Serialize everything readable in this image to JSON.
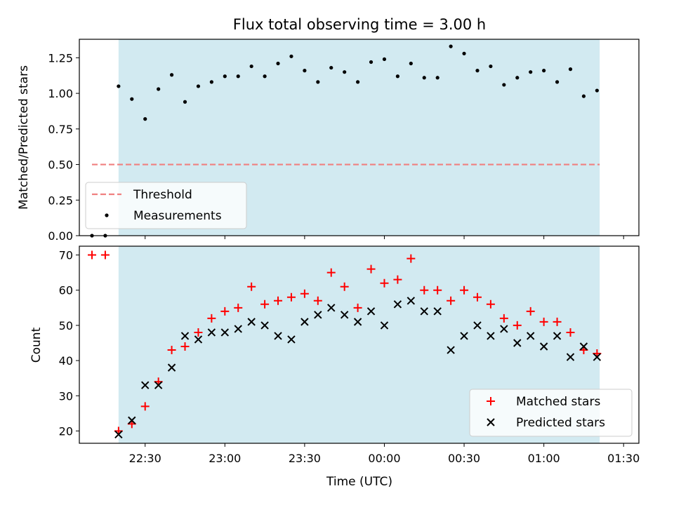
{
  "figure": {
    "title": "Flux total observing time = 3.00 h",
    "shaded_region_color": "#add8e6"
  },
  "chart_data": [
    {
      "type": "scatter",
      "panel": "top",
      "ylabel": "Matched/Predicted stars",
      "ylim": [
        0,
        1.38
      ],
      "yticks": [
        0.0,
        0.25,
        0.5,
        0.75,
        1.0,
        1.25
      ],
      "ytick_labels": [
        "0.00",
        "0.25",
        "0.50",
        "0.75",
        "1.00",
        "1.25"
      ],
      "xlim": [
        "22:10",
        "01:31"
      ],
      "shaded_interval": [
        "22:20",
        "01:21"
      ],
      "threshold": {
        "name": "Threshold",
        "value": 0.5,
        "x_range": [
          "22:10",
          "01:21"
        ],
        "color": "#f08080",
        "style": "dashed"
      },
      "legend": {
        "position": "lower-left",
        "entries": [
          "Threshold",
          "Measurements"
        ]
      },
      "series": [
        {
          "name": "Measurements",
          "color": "#000000",
          "marker": "dot",
          "points": [
            [
              "22:10",
              0.0
            ],
            [
              "22:15",
              0.0
            ],
            [
              "22:20",
              1.05
            ],
            [
              "22:25",
              0.96
            ],
            [
              "22:30",
              0.82
            ],
            [
              "22:35",
              1.03
            ],
            [
              "22:40",
              1.13
            ],
            [
              "22:45",
              0.94
            ],
            [
              "22:50",
              1.05
            ],
            [
              "22:55",
              1.08
            ],
            [
              "23:00",
              1.12
            ],
            [
              "23:05",
              1.12
            ],
            [
              "23:10",
              1.19
            ],
            [
              "23:15",
              1.12
            ],
            [
              "23:20",
              1.21
            ],
            [
              "23:25",
              1.26
            ],
            [
              "23:30",
              1.16
            ],
            [
              "23:35",
              1.08
            ],
            [
              "23:40",
              1.18
            ],
            [
              "23:45",
              1.15
            ],
            [
              "23:50",
              1.08
            ],
            [
              "23:55",
              1.22
            ],
            [
              "00:00",
              1.24
            ],
            [
              "00:05",
              1.12
            ],
            [
              "00:10",
              1.21
            ],
            [
              "00:15",
              1.11
            ],
            [
              "00:20",
              1.11
            ],
            [
              "00:25",
              1.33
            ],
            [
              "00:30",
              1.28
            ],
            [
              "00:35",
              1.16
            ],
            [
              "00:40",
              1.19
            ],
            [
              "00:45",
              1.06
            ],
            [
              "00:50",
              1.11
            ],
            [
              "00:55",
              1.15
            ],
            [
              "01:00",
              1.16
            ],
            [
              "01:05",
              1.08
            ],
            [
              "01:10",
              1.17
            ],
            [
              "01:15",
              0.98
            ],
            [
              "01:20",
              1.02
            ]
          ]
        }
      ]
    },
    {
      "type": "scatter",
      "panel": "bottom",
      "xlabel": "Time (UTC)",
      "ylabel": "Count",
      "ylim": [
        16.5,
        72.5
      ],
      "yticks": [
        20,
        30,
        40,
        50,
        60,
        70
      ],
      "ytick_labels": [
        "20",
        "30",
        "40",
        "50",
        "60",
        "70"
      ],
      "xlim": [
        "22:10",
        "01:31"
      ],
      "xticks": [
        "22:30",
        "23:00",
        "23:30",
        "00:00",
        "00:30",
        "01:00",
        "01:30"
      ],
      "xtick_labels": [
        "22:30",
        "23:00",
        "23:30",
        "00:00",
        "00:30",
        "01:00",
        "01:30"
      ],
      "shaded_interval": [
        "22:20",
        "01:21"
      ],
      "legend": {
        "position": "lower-right",
        "entries": [
          "Matched stars",
          "Predicted stars"
        ]
      },
      "series": [
        {
          "name": "Matched stars",
          "color": "#ff0000",
          "marker": "plus",
          "points": [
            [
              "22:10",
              70
            ],
            [
              "22:15",
              70
            ],
            [
              "22:20",
              20
            ],
            [
              "22:25",
              22
            ],
            [
              "22:30",
              27
            ],
            [
              "22:35",
              34
            ],
            [
              "22:40",
              43
            ],
            [
              "22:45",
              44
            ],
            [
              "22:50",
              48
            ],
            [
              "22:55",
              52
            ],
            [
              "23:00",
              54
            ],
            [
              "23:05",
              55
            ],
            [
              "23:10",
              61
            ],
            [
              "23:15",
              56
            ],
            [
              "23:20",
              57
            ],
            [
              "23:25",
              58
            ],
            [
              "23:30",
              59
            ],
            [
              "23:35",
              57
            ],
            [
              "23:40",
              65
            ],
            [
              "23:45",
              61
            ],
            [
              "23:50",
              55
            ],
            [
              "23:55",
              66
            ],
            [
              "00:00",
              62
            ],
            [
              "00:05",
              63
            ],
            [
              "00:10",
              69
            ],
            [
              "00:15",
              60
            ],
            [
              "00:20",
              60
            ],
            [
              "00:25",
              57
            ],
            [
              "00:30",
              60
            ],
            [
              "00:35",
              58
            ],
            [
              "00:40",
              56
            ],
            [
              "00:45",
              52
            ],
            [
              "00:50",
              50
            ],
            [
              "00:55",
              54
            ],
            [
              "01:00",
              51
            ],
            [
              "01:05",
              51
            ],
            [
              "01:10",
              48
            ],
            [
              "01:15",
              43
            ],
            [
              "01:20",
              42
            ]
          ]
        },
        {
          "name": "Predicted stars",
          "color": "#000000",
          "marker": "x",
          "points": [
            [
              "22:20",
              19
            ],
            [
              "22:25",
              23
            ],
            [
              "22:30",
              33
            ],
            [
              "22:35",
              33
            ],
            [
              "22:40",
              38
            ],
            [
              "22:45",
              47
            ],
            [
              "22:50",
              46
            ],
            [
              "22:55",
              48
            ],
            [
              "23:00",
              48
            ],
            [
              "23:05",
              49
            ],
            [
              "23:10",
              51
            ],
            [
              "23:15",
              50
            ],
            [
              "23:20",
              47
            ],
            [
              "23:25",
              46
            ],
            [
              "23:30",
              51
            ],
            [
              "23:35",
              53
            ],
            [
              "23:40",
              55
            ],
            [
              "23:45",
              53
            ],
            [
              "23:50",
              51
            ],
            [
              "23:55",
              54
            ],
            [
              "00:00",
              50
            ],
            [
              "00:05",
              56
            ],
            [
              "00:10",
              57
            ],
            [
              "00:15",
              54
            ],
            [
              "00:20",
              54
            ],
            [
              "00:25",
              43
            ],
            [
              "00:30",
              47
            ],
            [
              "00:35",
              50
            ],
            [
              "00:40",
              47
            ],
            [
              "00:45",
              49
            ],
            [
              "00:50",
              45
            ],
            [
              "00:55",
              47
            ],
            [
              "01:00",
              44
            ],
            [
              "01:05",
              47
            ],
            [
              "01:10",
              41
            ],
            [
              "01:15",
              44
            ],
            [
              "01:20",
              41
            ]
          ]
        }
      ]
    }
  ]
}
